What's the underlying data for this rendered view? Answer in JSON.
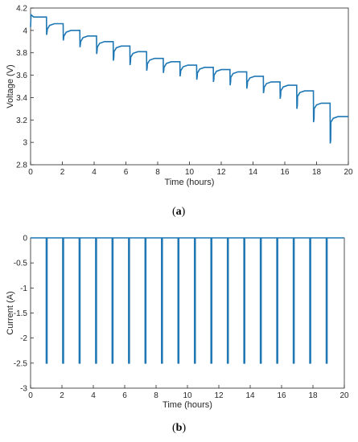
{
  "chart_data": [
    {
      "type": "line",
      "caption_open": "(",
      "caption_letter": "a",
      "caption_close": ")",
      "title": "",
      "xlabel": "Time (hours)",
      "ylabel": "Voltage (V)",
      "xlim": [
        0,
        20
      ],
      "ylim": [
        2.8,
        4.2
      ],
      "xticks": [
        0,
        2,
        4,
        6,
        8,
        10,
        12,
        14,
        16,
        18,
        20
      ],
      "yticks": [
        2.8,
        3,
        3.2,
        3.4,
        3.6,
        3.8,
        4,
        4.2
      ],
      "xtick_labels": [
        "0",
        "2",
        "4",
        "6",
        "8",
        "10",
        "12",
        "14",
        "16",
        "18",
        "20"
      ],
      "ytick_labels": [
        "2.8",
        "3",
        "3.2",
        "3.4",
        "3.6",
        "3.8",
        "4",
        "4.2"
      ],
      "grid": false,
      "series_color": "#1f77b4",
      "pulse_times": [
        1.0,
        2.05,
        3.1,
        4.15,
        5.2,
        6.25,
        7.3,
        8.35,
        9.4,
        10.45,
        11.5,
        12.55,
        13.6,
        14.65,
        15.7,
        16.75,
        17.8,
        18.85
      ],
      "rest_voltage": [
        4.12,
        4.06,
        4.0,
        3.95,
        3.9,
        3.86,
        3.81,
        3.75,
        3.72,
        3.69,
        3.67,
        3.65,
        3.63,
        3.59,
        3.54,
        3.51,
        3.46,
        3.35,
        3.23
      ],
      "pulse_min_voltage": [
        3.96,
        3.91,
        3.85,
        3.79,
        3.73,
        3.69,
        3.64,
        3.62,
        3.59,
        3.56,
        3.54,
        3.51,
        3.48,
        3.44,
        3.39,
        3.3,
        3.18,
        2.99
      ]
    },
    {
      "type": "line",
      "caption_open": "(",
      "caption_letter": "b",
      "caption_close": ")",
      "title": "",
      "xlabel": "Time (hours)",
      "ylabel": "Current (A)",
      "xlim": [
        0,
        20
      ],
      "ylim": [
        -3,
        0
      ],
      "xticks": [
        0,
        2,
        4,
        6,
        8,
        10,
        12,
        14,
        16,
        18,
        20
      ],
      "yticks": [
        0,
        -0.5,
        -1,
        -1.5,
        -2,
        -2.5,
        -3
      ],
      "xtick_labels": [
        "0",
        "2",
        "4",
        "6",
        "8",
        "10",
        "12",
        "14",
        "16",
        "18",
        "20"
      ],
      "ytick_labels": [
        "0",
        "-0.5",
        "-1",
        "-1.5",
        "-2",
        "-2.5",
        "-3"
      ],
      "grid": false,
      "series_color": "#1f77b4",
      "pulse_times": [
        1.0,
        2.05,
        3.1,
        4.15,
        5.2,
        6.25,
        7.3,
        8.35,
        9.4,
        10.45,
        11.5,
        12.55,
        13.6,
        14.65,
        15.7,
        16.75,
        17.8,
        18.85
      ],
      "pulse_current": -2.5,
      "rest_current": 0
    }
  ]
}
